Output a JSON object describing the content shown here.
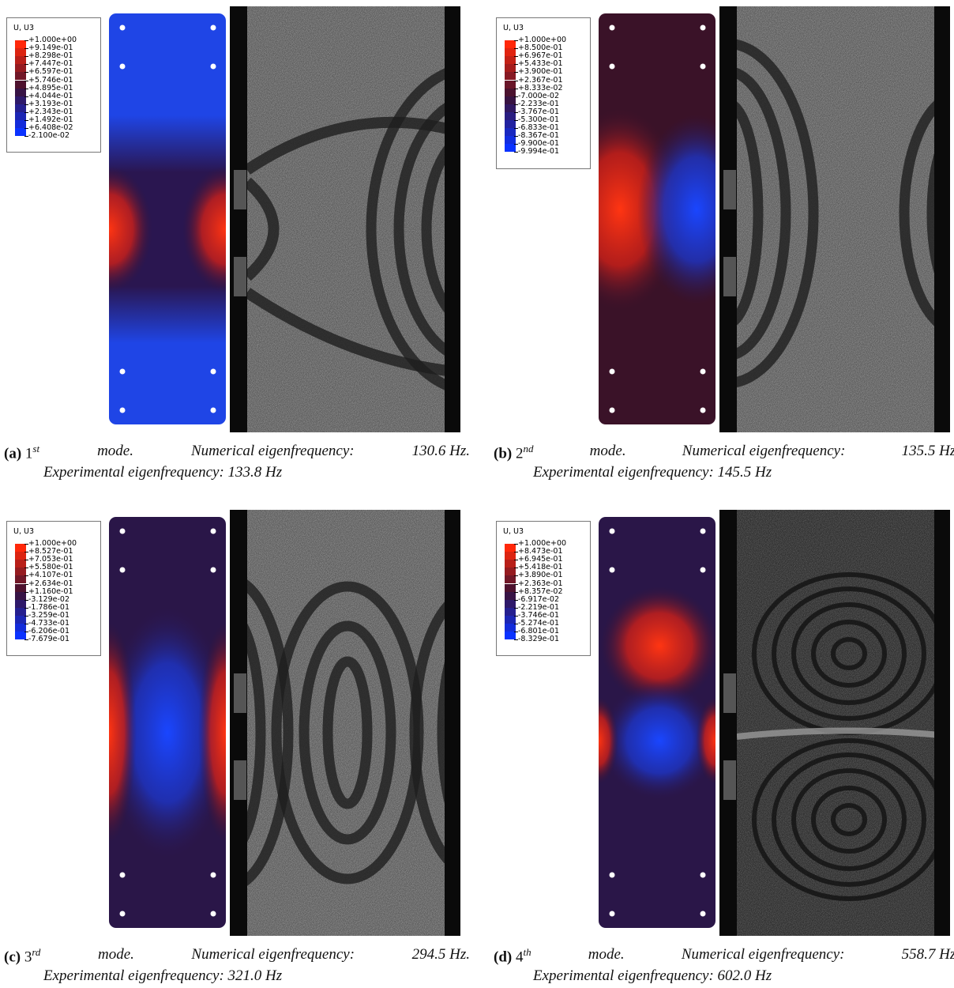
{
  "panels": [
    {
      "legend": {
        "title": "U, U3",
        "labels": [
          "+1.000e+00",
          "+9.149e-01",
          "+8.298e-01",
          "+7.447e-01",
          "+6.597e-01",
          "+5.746e-01",
          "+4.895e-01",
          "+4.044e-01",
          "+3.193e-01",
          "+2.343e-01",
          "+1.492e-01",
          "+6.408e-02",
          "-2.100e-02"
        ]
      },
      "caption": {
        "tag": "(a)",
        "mode_number": "1",
        "mode_suffix": "st",
        "mode_word": "mode.",
        "numerical_label": "Numerical eigenfrequency:",
        "numerical_value": "130.6 Hz.",
        "experimental": "Experimental eigenfrequency: 133.8 Hz"
      }
    },
    {
      "legend": {
        "title": "U, U3",
        "labels": [
          "+1.000e+00",
          "+8.500e-01",
          "+6.967e-01",
          "+5.433e-01",
          "+3.900e-01",
          "+2.367e-01",
          "+8.333e-02",
          "-7.000e-02",
          "-2.233e-01",
          "-3.767e-01",
          "-5.300e-01",
          "-6.833e-01",
          "-8.367e-01",
          "-9.900e-01",
          "-9.994e-01"
        ]
      },
      "caption": {
        "tag": "(b)",
        "mode_number": "2",
        "mode_suffix": "nd",
        "mode_word": "mode.",
        "numerical_label": "Numerical eigenfrequency:",
        "numerical_value": "135.5 Hz.",
        "experimental": "Experimental eigenfrequency: 145.5 Hz"
      }
    },
    {
      "legend": {
        "title": "U, U3",
        "labels": [
          "+1.000e+00",
          "+8.527e-01",
          "+7.053e-01",
          "+5.580e-01",
          "+4.107e-01",
          "+2.634e-01",
          "+1.160e-01",
          "-3.129e-02",
          "-1.786e-01",
          "-3.259e-01",
          "-4.733e-01",
          "-6.206e-01",
          "-7.679e-01"
        ]
      },
      "caption": {
        "tag": "(c)",
        "mode_number": "3",
        "mode_suffix": "rd",
        "mode_word": "mode.",
        "numerical_label": "Numerical eigenfrequency:",
        "numerical_value": "294.5 Hz.",
        "experimental": "Experimental eigenfrequency: 321.0 Hz"
      }
    },
    {
      "legend": {
        "title": "U, U3",
        "labels": [
          "+1.000e+00",
          "+8.473e-01",
          "+6.945e-01",
          "+5.418e-01",
          "+3.890e-01",
          "+2.363e-01",
          "+8.357e-02",
          "-6.917e-02",
          "-2.219e-01",
          "-3.746e-01",
          "-5.274e-01",
          "-6.801e-01",
          "-8.329e-01"
        ]
      },
      "caption": {
        "tag": "(d)",
        "mode_number": "4",
        "mode_suffix": "th",
        "mode_word": "mode.",
        "numerical_label": "Numerical eigenfrequency:",
        "numerical_value": "558.7 Hz.",
        "experimental": "Experimental eigenfrequency: 602.0 Hz"
      }
    }
  ]
}
